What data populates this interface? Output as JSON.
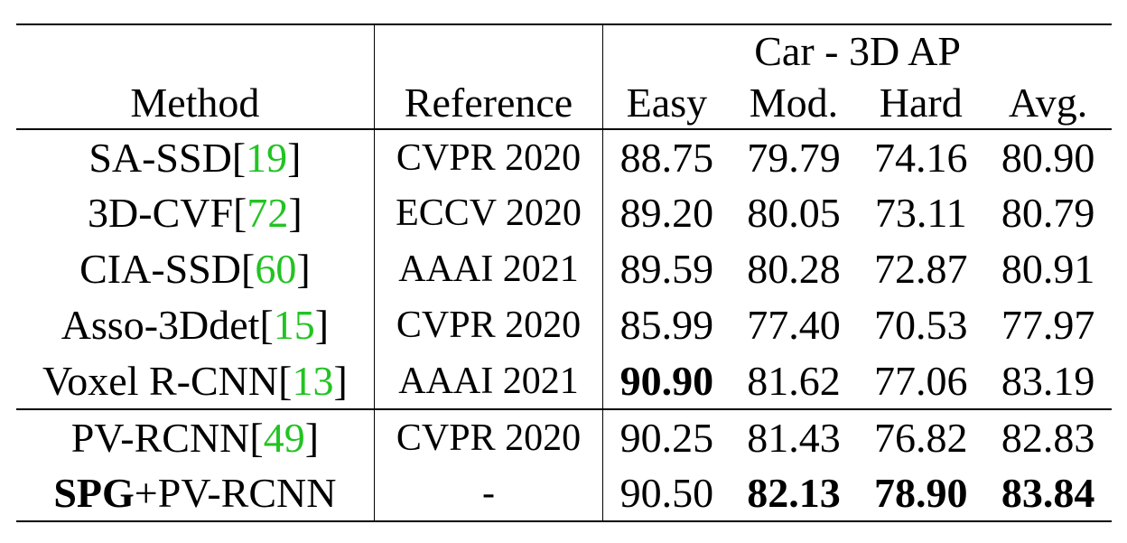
{
  "table": {
    "group_header": "Car - 3D AP",
    "headers": {
      "method": "Method",
      "reference": "Reference",
      "easy": "Easy",
      "mod": "Mod.",
      "hard": "Hard",
      "avg": "Avg."
    },
    "rows": [
      {
        "method": "SA-SSD[",
        "cite": "19",
        "close": "]",
        "reference": "CVPR 2020",
        "easy": "88.75",
        "mod": "79.79",
        "hard": "74.16",
        "avg": "80.90"
      },
      {
        "method": "3D-CVF[",
        "cite": "72",
        "close": "]",
        "reference": "ECCV 2020",
        "easy": "89.20",
        "mod": "80.05",
        "hard": "73.11",
        "avg": "80.79"
      },
      {
        "method": "CIA-SSD[",
        "cite": "60",
        "close": "]",
        "reference": "AAAI 2021",
        "easy": "89.59",
        "mod": "80.28",
        "hard": "72.87",
        "avg": "80.91"
      },
      {
        "method": "Asso-3Ddet[",
        "cite": "15",
        "close": "]",
        "reference": "CVPR 2020",
        "easy": "85.99",
        "mod": "77.40",
        "hard": "70.53",
        "avg": "77.97"
      },
      {
        "method": "Voxel R-CNN[",
        "cite": "13",
        "close": "]",
        "reference": "AAAI 2021",
        "easy": "90.90",
        "mod": "81.62",
        "hard": "77.06",
        "avg": "83.19"
      },
      {
        "method": "PV-RCNN[",
        "cite": "49",
        "close": "]",
        "reference": "CVPR 2020",
        "easy": "90.25",
        "mod": "81.43",
        "hard": "76.82",
        "avg": "82.83"
      },
      {
        "method_bold": "SPG",
        "method": "+PV-RCNN",
        "reference": "-",
        "easy": "90.50",
        "mod": "82.13",
        "hard": "78.90",
        "avg": "83.84"
      }
    ],
    "colors": {
      "citation": "#22c322",
      "text": "#000000"
    }
  }
}
